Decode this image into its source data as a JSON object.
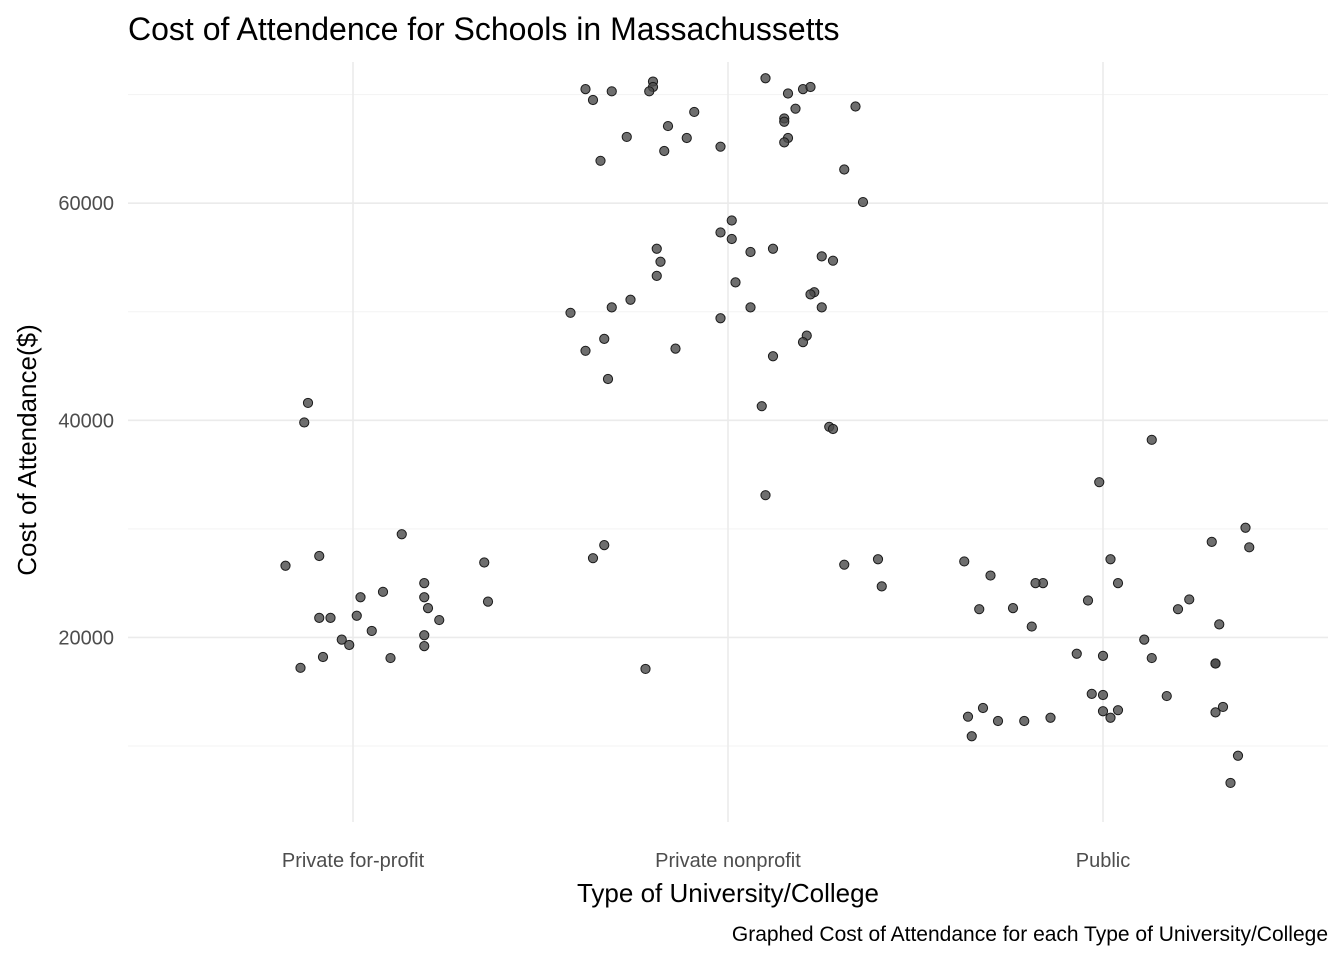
{
  "chart_data": {
    "type": "scatter",
    "title": "Cost of Attendence for Schools in Massachussetts",
    "xlabel": "Type of University/College",
    "ylabel": "Cost of Attendance($)",
    "caption": "Graphed Cost of Attendance for each Type of University/College",
    "categories": [
      "Private for-profit",
      "Private nonprofit",
      "Public"
    ],
    "ylim": [
      3000,
      73000
    ],
    "y_ticks": [
      20000,
      40000,
      60000
    ],
    "grid": true,
    "legend": "none",
    "point_color": "#333333",
    "series": [
      {
        "category": "Private for-profit",
        "points": [
          [
            0.82,
            26600
          ],
          [
            0.86,
            17200
          ],
          [
            0.87,
            39800
          ],
          [
            0.88,
            41600
          ],
          [
            0.91,
            27500
          ],
          [
            0.91,
            21800
          ],
          [
            0.92,
            18200
          ],
          [
            0.94,
            21800
          ],
          [
            0.97,
            19800
          ],
          [
            0.99,
            19300
          ],
          [
            1.01,
            22000
          ],
          [
            1.02,
            23700
          ],
          [
            1.05,
            20600
          ],
          [
            1.08,
            24200
          ],
          [
            1.1,
            18100
          ],
          [
            1.13,
            29500
          ],
          [
            1.19,
            25000
          ],
          [
            1.19,
            23700
          ],
          [
            1.19,
            19200
          ],
          [
            1.19,
            20200
          ],
          [
            1.2,
            22700
          ],
          [
            1.23,
            21600
          ],
          [
            1.35,
            26900
          ],
          [
            1.36,
            23300
          ]
        ]
      },
      {
        "category": "Private nonprofit",
        "points": [
          [
            1.62,
            70500
          ],
          [
            1.64,
            69500
          ],
          [
            1.69,
            70300
          ],
          [
            1.8,
            71200
          ],
          [
            1.8,
            70700
          ],
          [
            2.1,
            71500
          ],
          [
            2.2,
            70500
          ],
          [
            2.22,
            70700
          ],
          [
            2.16,
            70100
          ],
          [
            1.79,
            70300
          ],
          [
            1.73,
            66100
          ],
          [
            1.91,
            68400
          ],
          [
            1.89,
            66000
          ],
          [
            2.18,
            68700
          ],
          [
            2.15,
            67800
          ],
          [
            2.15,
            67500
          ],
          [
            2.34,
            68900
          ],
          [
            1.84,
            67100
          ],
          [
            1.83,
            64800
          ],
          [
            1.66,
            63900
          ],
          [
            1.98,
            65200
          ],
          [
            2.16,
            66000
          ],
          [
            2.15,
            65600
          ],
          [
            2.31,
            63100
          ],
          [
            2.36,
            60100
          ],
          [
            2.01,
            58400
          ],
          [
            1.98,
            57300
          ],
          [
            2.01,
            56700
          ],
          [
            1.81,
            55800
          ],
          [
            1.82,
            54600
          ],
          [
            2.06,
            55500
          ],
          [
            2.12,
            55800
          ],
          [
            2.25,
            55100
          ],
          [
            2.28,
            54700
          ],
          [
            1.81,
            53300
          ],
          [
            2.02,
            52700
          ],
          [
            1.74,
            51100
          ],
          [
            2.23,
            51800
          ],
          [
            2.22,
            51600
          ],
          [
            1.69,
            50400
          ],
          [
            2.06,
            50400
          ],
          [
            2.25,
            50400
          ],
          [
            1.58,
            49900
          ],
          [
            1.98,
            49400
          ],
          [
            1.62,
            46400
          ],
          [
            1.67,
            47500
          ],
          [
            1.86,
            46600
          ],
          [
            2.21,
            47800
          ],
          [
            2.2,
            47200
          ],
          [
            2.12,
            45900
          ],
          [
            1.68,
            43800
          ],
          [
            2.09,
            41300
          ],
          [
            2.27,
            39400
          ],
          [
            2.28,
            39200
          ],
          [
            2.1,
            33100
          ],
          [
            1.64,
            27300
          ],
          [
            1.67,
            28500
          ],
          [
            2.31,
            26700
          ],
          [
            2.4,
            27200
          ],
          [
            2.41,
            24700
          ],
          [
            1.78,
            17100
          ]
        ]
      },
      {
        "category": "Public",
        "points": [
          [
            2.63,
            27000
          ],
          [
            2.67,
            22600
          ],
          [
            2.7,
            25700
          ],
          [
            2.64,
            12700
          ],
          [
            2.68,
            13500
          ],
          [
            2.65,
            10900
          ],
          [
            2.72,
            12300
          ],
          [
            2.76,
            22700
          ],
          [
            2.81,
            21000
          ],
          [
            2.84,
            25000
          ],
          [
            2.82,
            25000
          ],
          [
            2.79,
            12300
          ],
          [
            2.86,
            12600
          ],
          [
            2.93,
            18500
          ],
          [
            2.96,
            23400
          ],
          [
            2.99,
            34300
          ],
          [
            3.02,
            27200
          ],
          [
            3.04,
            25000
          ],
          [
            3.0,
            18300
          ],
          [
            2.97,
            14800
          ],
          [
            3.0,
            14700
          ],
          [
            3.04,
            13300
          ],
          [
            3.0,
            13200
          ],
          [
            3.02,
            12600
          ],
          [
            3.13,
            38200
          ],
          [
            3.11,
            19800
          ],
          [
            3.13,
            18100
          ],
          [
            3.17,
            14600
          ],
          [
            3.2,
            22600
          ],
          [
            3.23,
            23500
          ],
          [
            3.29,
            28800
          ],
          [
            3.31,
            21200
          ],
          [
            3.32,
            13600
          ],
          [
            3.3,
            17600
          ],
          [
            3.3,
            17600
          ],
          [
            3.3,
            13100
          ],
          [
            3.38,
            30100
          ],
          [
            3.39,
            28300
          ],
          [
            3.36,
            9100
          ],
          [
            3.34,
            6600
          ]
        ]
      }
    ]
  }
}
